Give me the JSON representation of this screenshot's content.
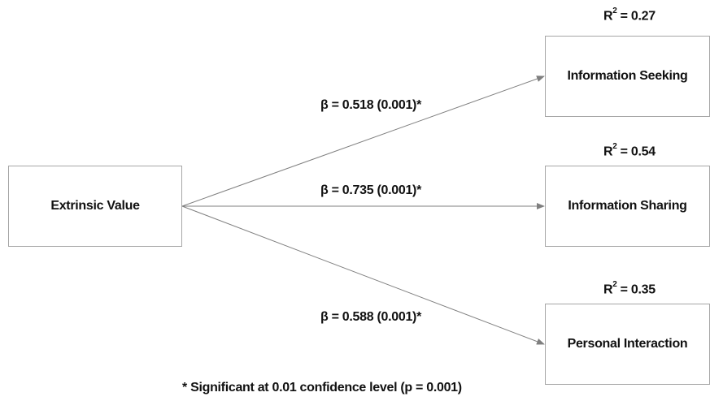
{
  "source_node": {
    "label": "Extrinsic Value"
  },
  "targets": [
    {
      "label": "Information Seeking",
      "r2_prefix": "R",
      "r2_exp": "2",
      "r2_value": " = 0.27",
      "beta": "β = 0.518 (0.001)*"
    },
    {
      "label": "Information Sharing",
      "r2_prefix": "R",
      "r2_exp": "2",
      "r2_value": " = 0.54",
      "beta": "β = 0.735 (0.001)*"
    },
    {
      "label": "Personal Interaction",
      "r2_prefix": "R",
      "r2_exp": "2",
      "r2_value": " = 0.35",
      "beta": "β = 0.588 (0.001)*"
    }
  ],
  "footnote": "* Significant at 0.01 confidence level (p = 0.001)",
  "colors": {
    "box_border": "#a6a6a6",
    "arrow": "#7f7f7f",
    "text": "#111111"
  }
}
